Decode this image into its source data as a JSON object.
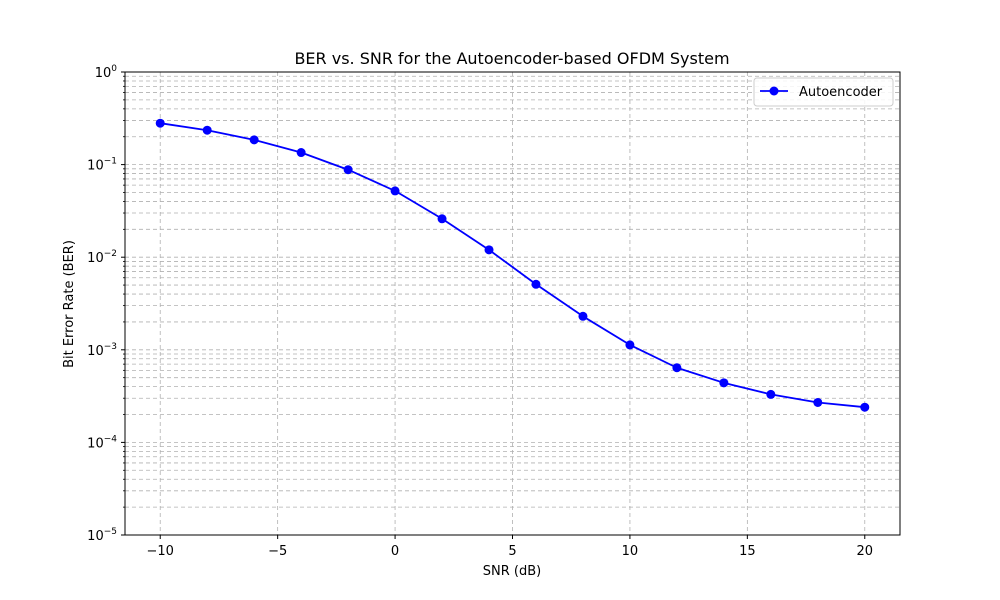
{
  "chart_data": {
    "type": "line",
    "title": "BER vs. SNR for the Autoencoder-based OFDM System",
    "xlabel": "SNR (dB)",
    "ylabel": "Bit Error Rate (BER)",
    "yscale": "log",
    "xlim": [
      -11.5,
      21.5
    ],
    "ylim": [
      1e-05,
      1
    ],
    "x_ticks": [
      -10,
      -5,
      0,
      5,
      10,
      15,
      20
    ],
    "x_tick_labels": [
      "−10",
      "−5",
      "0",
      "5",
      "10",
      "15",
      "20"
    ],
    "y_ticks": [
      1e-05,
      0.0001,
      0.001,
      0.01,
      0.1,
      1
    ],
    "y_tick_labels": [
      {
        "base": "10",
        "exp": "−5"
      },
      {
        "base": "10",
        "exp": "−4"
      },
      {
        "base": "10",
        "exp": "−3"
      },
      {
        "base": "10",
        "exp": "−2"
      },
      {
        "base": "10",
        "exp": "−1"
      },
      {
        "base": "10",
        "exp": "0"
      }
    ],
    "grid": {
      "major": true,
      "minor": true,
      "style": "dashed"
    },
    "legend_position": "top-right",
    "x": [
      -10,
      -8,
      -6,
      -4,
      -2,
      0,
      2,
      4,
      6,
      8,
      10,
      12,
      14,
      16,
      18,
      20
    ],
    "series": [
      {
        "name": "Autoencoder",
        "color": "#0000ff",
        "marker": "circle",
        "values": [
          0.28,
          0.235,
          0.185,
          0.135,
          0.088,
          0.052,
          0.026,
          0.012,
          0.0051,
          0.0023,
          0.00113,
          0.00064,
          0.00044,
          0.00033,
          0.00027,
          0.00024
        ]
      }
    ]
  }
}
